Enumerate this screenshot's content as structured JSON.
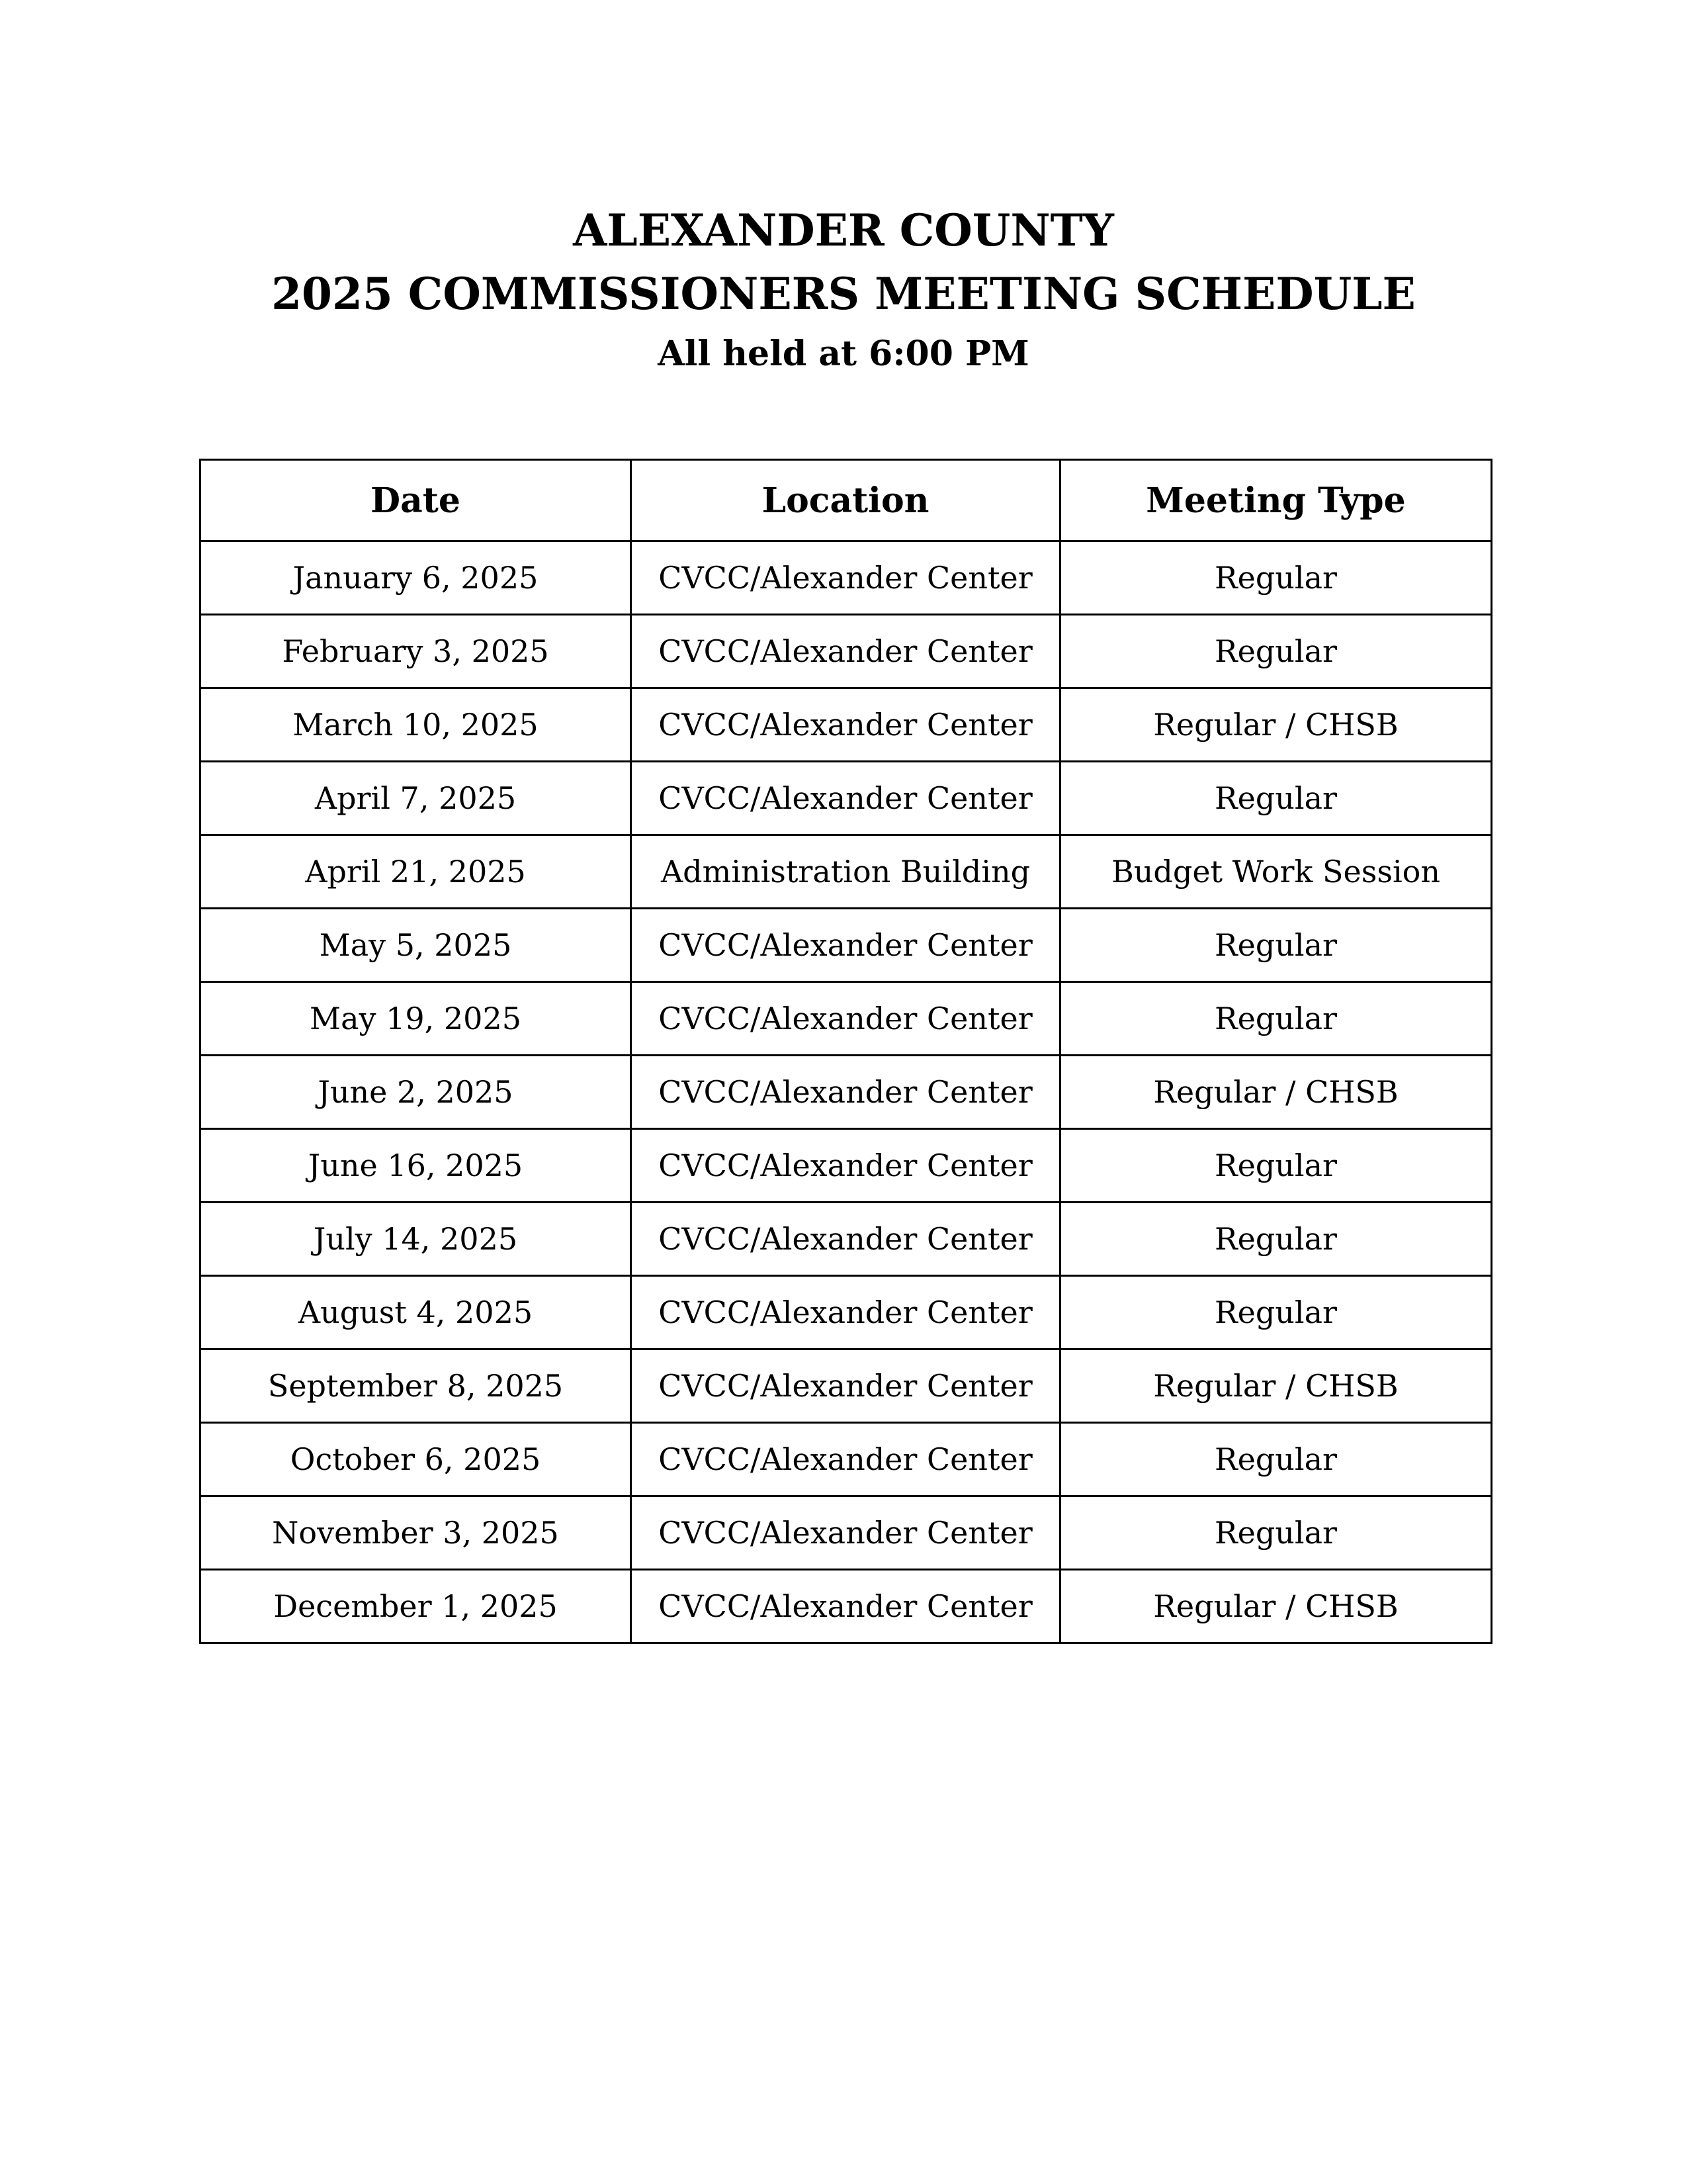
{
  "header": {
    "title_line1": "ALEXANDER COUNTY",
    "title_line2": "2025 COMMISSIONERS MEETING SCHEDULE",
    "subtitle": "All held at 6:00 PM"
  },
  "table": {
    "columns": [
      "Date",
      "Location",
      "Meeting Type"
    ],
    "rows": [
      [
        "January 6, 2025",
        "CVCC/Alexander Center",
        "Regular"
      ],
      [
        "February 3, 2025",
        "CVCC/Alexander Center",
        "Regular"
      ],
      [
        "March 10, 2025",
        "CVCC/Alexander Center",
        "Regular / CHSB"
      ],
      [
        "April 7, 2025",
        "CVCC/Alexander Center",
        "Regular"
      ],
      [
        "April 21, 2025",
        "Administration Building",
        "Budget Work Session"
      ],
      [
        "May 5, 2025",
        "CVCC/Alexander Center",
        "Regular"
      ],
      [
        "May 19, 2025",
        "CVCC/Alexander Center",
        "Regular"
      ],
      [
        "June 2, 2025",
        "CVCC/Alexander Center",
        "Regular / CHSB"
      ],
      [
        "June 16, 2025",
        "CVCC/Alexander Center",
        "Regular"
      ],
      [
        "July 14, 2025",
        "CVCC/Alexander Center",
        "Regular"
      ],
      [
        "August 4, 2025",
        "CVCC/Alexander Center",
        "Regular"
      ],
      [
        "September 8, 2025",
        "CVCC/Alexander Center",
        "Regular / CHSB"
      ],
      [
        "October 6, 2025",
        "CVCC/Alexander Center",
        "Regular"
      ],
      [
        "November 3, 2025",
        "CVCC/Alexander Center",
        "Regular"
      ],
      [
        "December 1, 2025",
        "CVCC/Alexander Center",
        "Regular / CHSB"
      ]
    ]
  }
}
